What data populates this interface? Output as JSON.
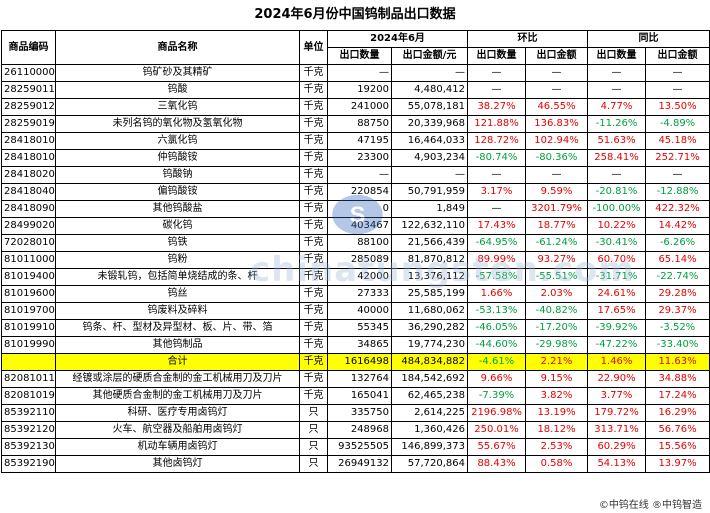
{
  "title": "2024年6月份中国钨制品出口数据",
  "headers": {
    "code": "商品编码",
    "name": "商品名称",
    "unit": "单位",
    "month": "2024年6月",
    "mom": "环比",
    "yoy": "同比",
    "qty": "出口数量",
    "amt_month": "出口金额/元",
    "amt": "出口金额"
  },
  "rows": [
    {
      "code": "26110000",
      "name": "钨矿砂及其精矿",
      "unit": "千克",
      "qty": "—",
      "amount": "—",
      "mom_qty": "—",
      "mom_amt": "—",
      "yoy_qty": "—",
      "yoy_amt": "—",
      "mqc": "flat",
      "mac": "flat",
      "yqc": "flat",
      "yac": "flat"
    },
    {
      "code": "28259011",
      "name": "钨酸",
      "unit": "千克",
      "qty": "19200",
      "amount": "4,480,412",
      "mom_qty": "—",
      "mom_amt": "—",
      "yoy_qty": "—",
      "yoy_amt": "—",
      "mqc": "flat",
      "mac": "flat",
      "yqc": "flat",
      "yac": "flat"
    },
    {
      "code": "28259012",
      "name": "三氧化钨",
      "unit": "千克",
      "qty": "241000",
      "amount": "55,078,181",
      "mom_qty": "38.27%",
      "mom_amt": "46.55%",
      "yoy_qty": "4.77%",
      "yoy_amt": "13.50%",
      "mqc": "up",
      "mac": "up",
      "yqc": "up",
      "yac": "up"
    },
    {
      "code": "28259019",
      "name": "未列名钨的氧化物及氢氧化物",
      "unit": "千克",
      "qty": "88750",
      "amount": "20,339,968",
      "mom_qty": "121.88%",
      "mom_amt": "136.83%",
      "yoy_qty": "-11.26%",
      "yoy_amt": "-4.89%",
      "mqc": "up",
      "mac": "up",
      "yqc": "down",
      "yac": "down"
    },
    {
      "code": "28418010",
      "name": "六氯化钨",
      "unit": "千克",
      "qty": "47195",
      "amount": "16,464,033",
      "mom_qty": "128.72%",
      "mom_amt": "102.94%",
      "yoy_qty": "51.63%",
      "yoy_amt": "45.18%",
      "mqc": "up",
      "mac": "up",
      "yqc": "up",
      "yac": "up"
    },
    {
      "code": "28418010",
      "name": "仲钨酸铵",
      "unit": "千克",
      "qty": "23300",
      "amount": "4,903,234",
      "mom_qty": "-80.74%",
      "mom_amt": "-80.36%",
      "yoy_qty": "258.41%",
      "yoy_amt": "252.71%",
      "mqc": "down",
      "mac": "down",
      "yqc": "up",
      "yac": "up"
    },
    {
      "code": "28418020",
      "name": "钨酸钠",
      "unit": "千克",
      "qty": "—",
      "amount": "—",
      "mom_qty": "—",
      "mom_amt": "—",
      "yoy_qty": "—",
      "yoy_amt": "—",
      "mqc": "flat",
      "mac": "flat",
      "yqc": "flat",
      "yac": "flat"
    },
    {
      "code": "28418040",
      "name": "偏钨酸铵",
      "unit": "千克",
      "qty": "220854",
      "amount": "50,791,959",
      "mom_qty": "3.17%",
      "mom_amt": "9.59%",
      "yoy_qty": "-20.81%",
      "yoy_amt": "-12.88%",
      "mqc": "up",
      "mac": "up",
      "yqc": "down",
      "yac": "down"
    },
    {
      "code": "28418090",
      "name": "其他钨酸盐",
      "unit": "千克",
      "qty": "0",
      "amount": "1,849",
      "mom_qty": "—",
      "mom_amt": "3201.79%",
      "yoy_qty": "-100.00%",
      "yoy_amt": "422.32%",
      "mqc": "flat",
      "mac": "up",
      "yqc": "down",
      "yac": "up"
    },
    {
      "code": "28499020",
      "name": "碳化钨",
      "unit": "千克",
      "qty": "403467",
      "amount": "122,632,110",
      "mom_qty": "17.43%",
      "mom_amt": "18.77%",
      "yoy_qty": "10.22%",
      "yoy_amt": "14.42%",
      "mqc": "up",
      "mac": "up",
      "yqc": "up",
      "yac": "up"
    },
    {
      "code": "72028010",
      "name": "钨铁",
      "unit": "千克",
      "qty": "88100",
      "amount": "21,566,439",
      "mom_qty": "-64.95%",
      "mom_amt": "-61.24%",
      "yoy_qty": "-30.41%",
      "yoy_amt": "-6.26%",
      "mqc": "down",
      "mac": "down",
      "yqc": "down",
      "yac": "down"
    },
    {
      "code": "81011000",
      "name": "钨粉",
      "unit": "千克",
      "qty": "285089",
      "amount": "81,870,812",
      "mom_qty": "89.99%",
      "mom_amt": "93.27%",
      "yoy_qty": "60.70%",
      "yoy_amt": "65.14%",
      "mqc": "up",
      "mac": "up",
      "yqc": "up",
      "yac": "up"
    },
    {
      "code": "81019400",
      "name": "未锻轧钨，包括简单烧结成的条、杆",
      "unit": "千克",
      "qty": "42000",
      "amount": "13,376,112",
      "mom_qty": "-57.58%",
      "mom_amt": "-55.51%",
      "yoy_qty": "-31.71%",
      "yoy_amt": "-22.74%",
      "mqc": "down",
      "mac": "down",
      "yqc": "down",
      "yac": "down"
    },
    {
      "code": "81019600",
      "name": "钨丝",
      "unit": "千克",
      "qty": "27333",
      "amount": "25,585,199",
      "mom_qty": "1.66%",
      "mom_amt": "2.03%",
      "yoy_qty": "24.61%",
      "yoy_amt": "29.28%",
      "mqc": "up",
      "mac": "up",
      "yqc": "up",
      "yac": "up"
    },
    {
      "code": "81019700",
      "name": "钨废料及碎料",
      "unit": "千克",
      "qty": "40000",
      "amount": "11,680,062",
      "mom_qty": "-53.13%",
      "mom_amt": "-40.82%",
      "yoy_qty": "17.65%",
      "yoy_amt": "29.37%",
      "mqc": "down",
      "mac": "down",
      "yqc": "up",
      "yac": "up"
    },
    {
      "code": "81019910",
      "name": "钨条、杆、型材及异型材、板、片、带、箔",
      "unit": "千克",
      "qty": "55345",
      "amount": "36,290,282",
      "mom_qty": "-46.05%",
      "mom_amt": "-17.20%",
      "yoy_qty": "-39.92%",
      "yoy_amt": "-3.52%",
      "mqc": "down",
      "mac": "down",
      "yqc": "down",
      "yac": "down"
    },
    {
      "code": "81019990",
      "name": "其他钨制品",
      "unit": "千克",
      "qty": "34865",
      "amount": "19,774,230",
      "mom_qty": "-44.60%",
      "mom_amt": "-29.98%",
      "yoy_qty": "-47.22%",
      "yoy_amt": "-33.40%",
      "mqc": "down",
      "mac": "down",
      "yqc": "down",
      "yac": "down"
    }
  ],
  "total": {
    "code": "",
    "name": "合计",
    "unit": "千克",
    "qty": "1616498",
    "amount": "484,834,882",
    "mom_qty": "-4.61%",
    "mom_amt": "2.21%",
    "yoy_qty": "1.46%",
    "yoy_amt": "11.63%",
    "mqc": "down",
    "mac": "up",
    "yqc": "up",
    "yac": "up"
  },
  "rows2": [
    {
      "code": "82081011",
      "name": "经镀或涂层的硬质合金制的金工机械用刀及刀片",
      "unit": "千克",
      "qty": "132764",
      "amount": "184,542,692",
      "mom_qty": "9.66%",
      "mom_amt": "9.15%",
      "yoy_qty": "22.90%",
      "yoy_amt": "34.88%",
      "mqc": "up",
      "mac": "up",
      "yqc": "up",
      "yac": "up"
    },
    {
      "code": "82081019",
      "name": "其他硬质合金制的金工机械用刀及刀片",
      "unit": "千克",
      "qty": "165041",
      "amount": "62,465,238",
      "mom_qty": "-7.39%",
      "mom_amt": "3.82%",
      "yoy_qty": "3.77%",
      "yoy_amt": "17.24%",
      "mqc": "down",
      "mac": "up",
      "yqc": "up",
      "yac": "up"
    },
    {
      "code": "85392110",
      "name": "科研、医疗专用卤钨灯",
      "unit": "只",
      "qty": "335750",
      "amount": "2,614,225",
      "mom_qty": "2196.98%",
      "mom_amt": "13.19%",
      "yoy_qty": "179.72%",
      "yoy_amt": "16.29%",
      "mqc": "up",
      "mac": "up",
      "yqc": "up",
      "yac": "up"
    },
    {
      "code": "85392120",
      "name": "火车、航空器及船舶用卤钨灯",
      "unit": "只",
      "qty": "248968",
      "amount": "1,360,426",
      "mom_qty": "250.01%",
      "mom_amt": "18.12%",
      "yoy_qty": "313.71%",
      "yoy_amt": "56.76%",
      "mqc": "up",
      "mac": "up",
      "yqc": "up",
      "yac": "up"
    },
    {
      "code": "85392130",
      "name": "机动车辆用卤钨灯",
      "unit": "只",
      "qty": "93525505",
      "amount": "146,899,373",
      "mom_qty": "55.67%",
      "mom_amt": "2.53%",
      "yoy_qty": "60.29%",
      "yoy_amt": "15.56%",
      "mqc": "up",
      "mac": "up",
      "yqc": "up",
      "yac": "up"
    },
    {
      "code": "85392190",
      "name": "其他卤钨灯",
      "unit": "只",
      "qty": "26949132",
      "amount": "57,720,864",
      "mom_qty": "88.43%",
      "mom_amt": "0.58%",
      "yoy_qty": "54.13%",
      "yoy_amt": "13.97%",
      "mqc": "up",
      "mac": "up",
      "yqc": "up",
      "yac": "up"
    }
  ],
  "watermark": "chinatungsten.com",
  "footer": "©中钨在线 ®中钨智造",
  "colors": {
    "positive": "#e60000",
    "negative": "#00a040",
    "highlight": "#ffff00"
  }
}
